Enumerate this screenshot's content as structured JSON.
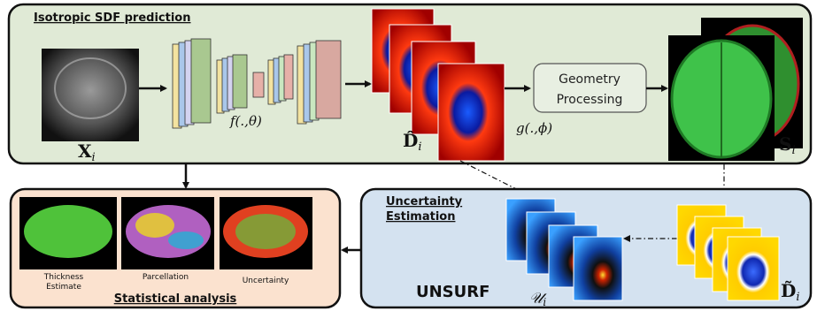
{
  "top_panel": {
    "title": "Isotropic SDF prediction",
    "input_label": {
      "symbol": "X",
      "sub": "i"
    },
    "network_label": "f(.,θ)",
    "sdf_label": {
      "symbol": "D̂",
      "sub": "i"
    },
    "geometry_label": "g(.,ϕ)",
    "geometry_box": [
      "Geometry",
      "Processing"
    ],
    "surface_label": {
      "symbol": "S",
      "sub": "i"
    }
  },
  "uncertainty_panel": {
    "title": [
      "Uncertainty",
      "Estimation"
    ],
    "method": "UNSURF",
    "uncertainty_label": {
      "symbol": "𝒰",
      "sub": "i"
    },
    "sdf_samples_label": {
      "symbol": "D̃",
      "sub": "i"
    }
  },
  "analysis_panel": {
    "title": "Statistical analysis",
    "items": [
      [
        "Thickness",
        "Estimate"
      ],
      [
        "Parcellation"
      ],
      [
        "Uncertainty"
      ]
    ]
  }
}
